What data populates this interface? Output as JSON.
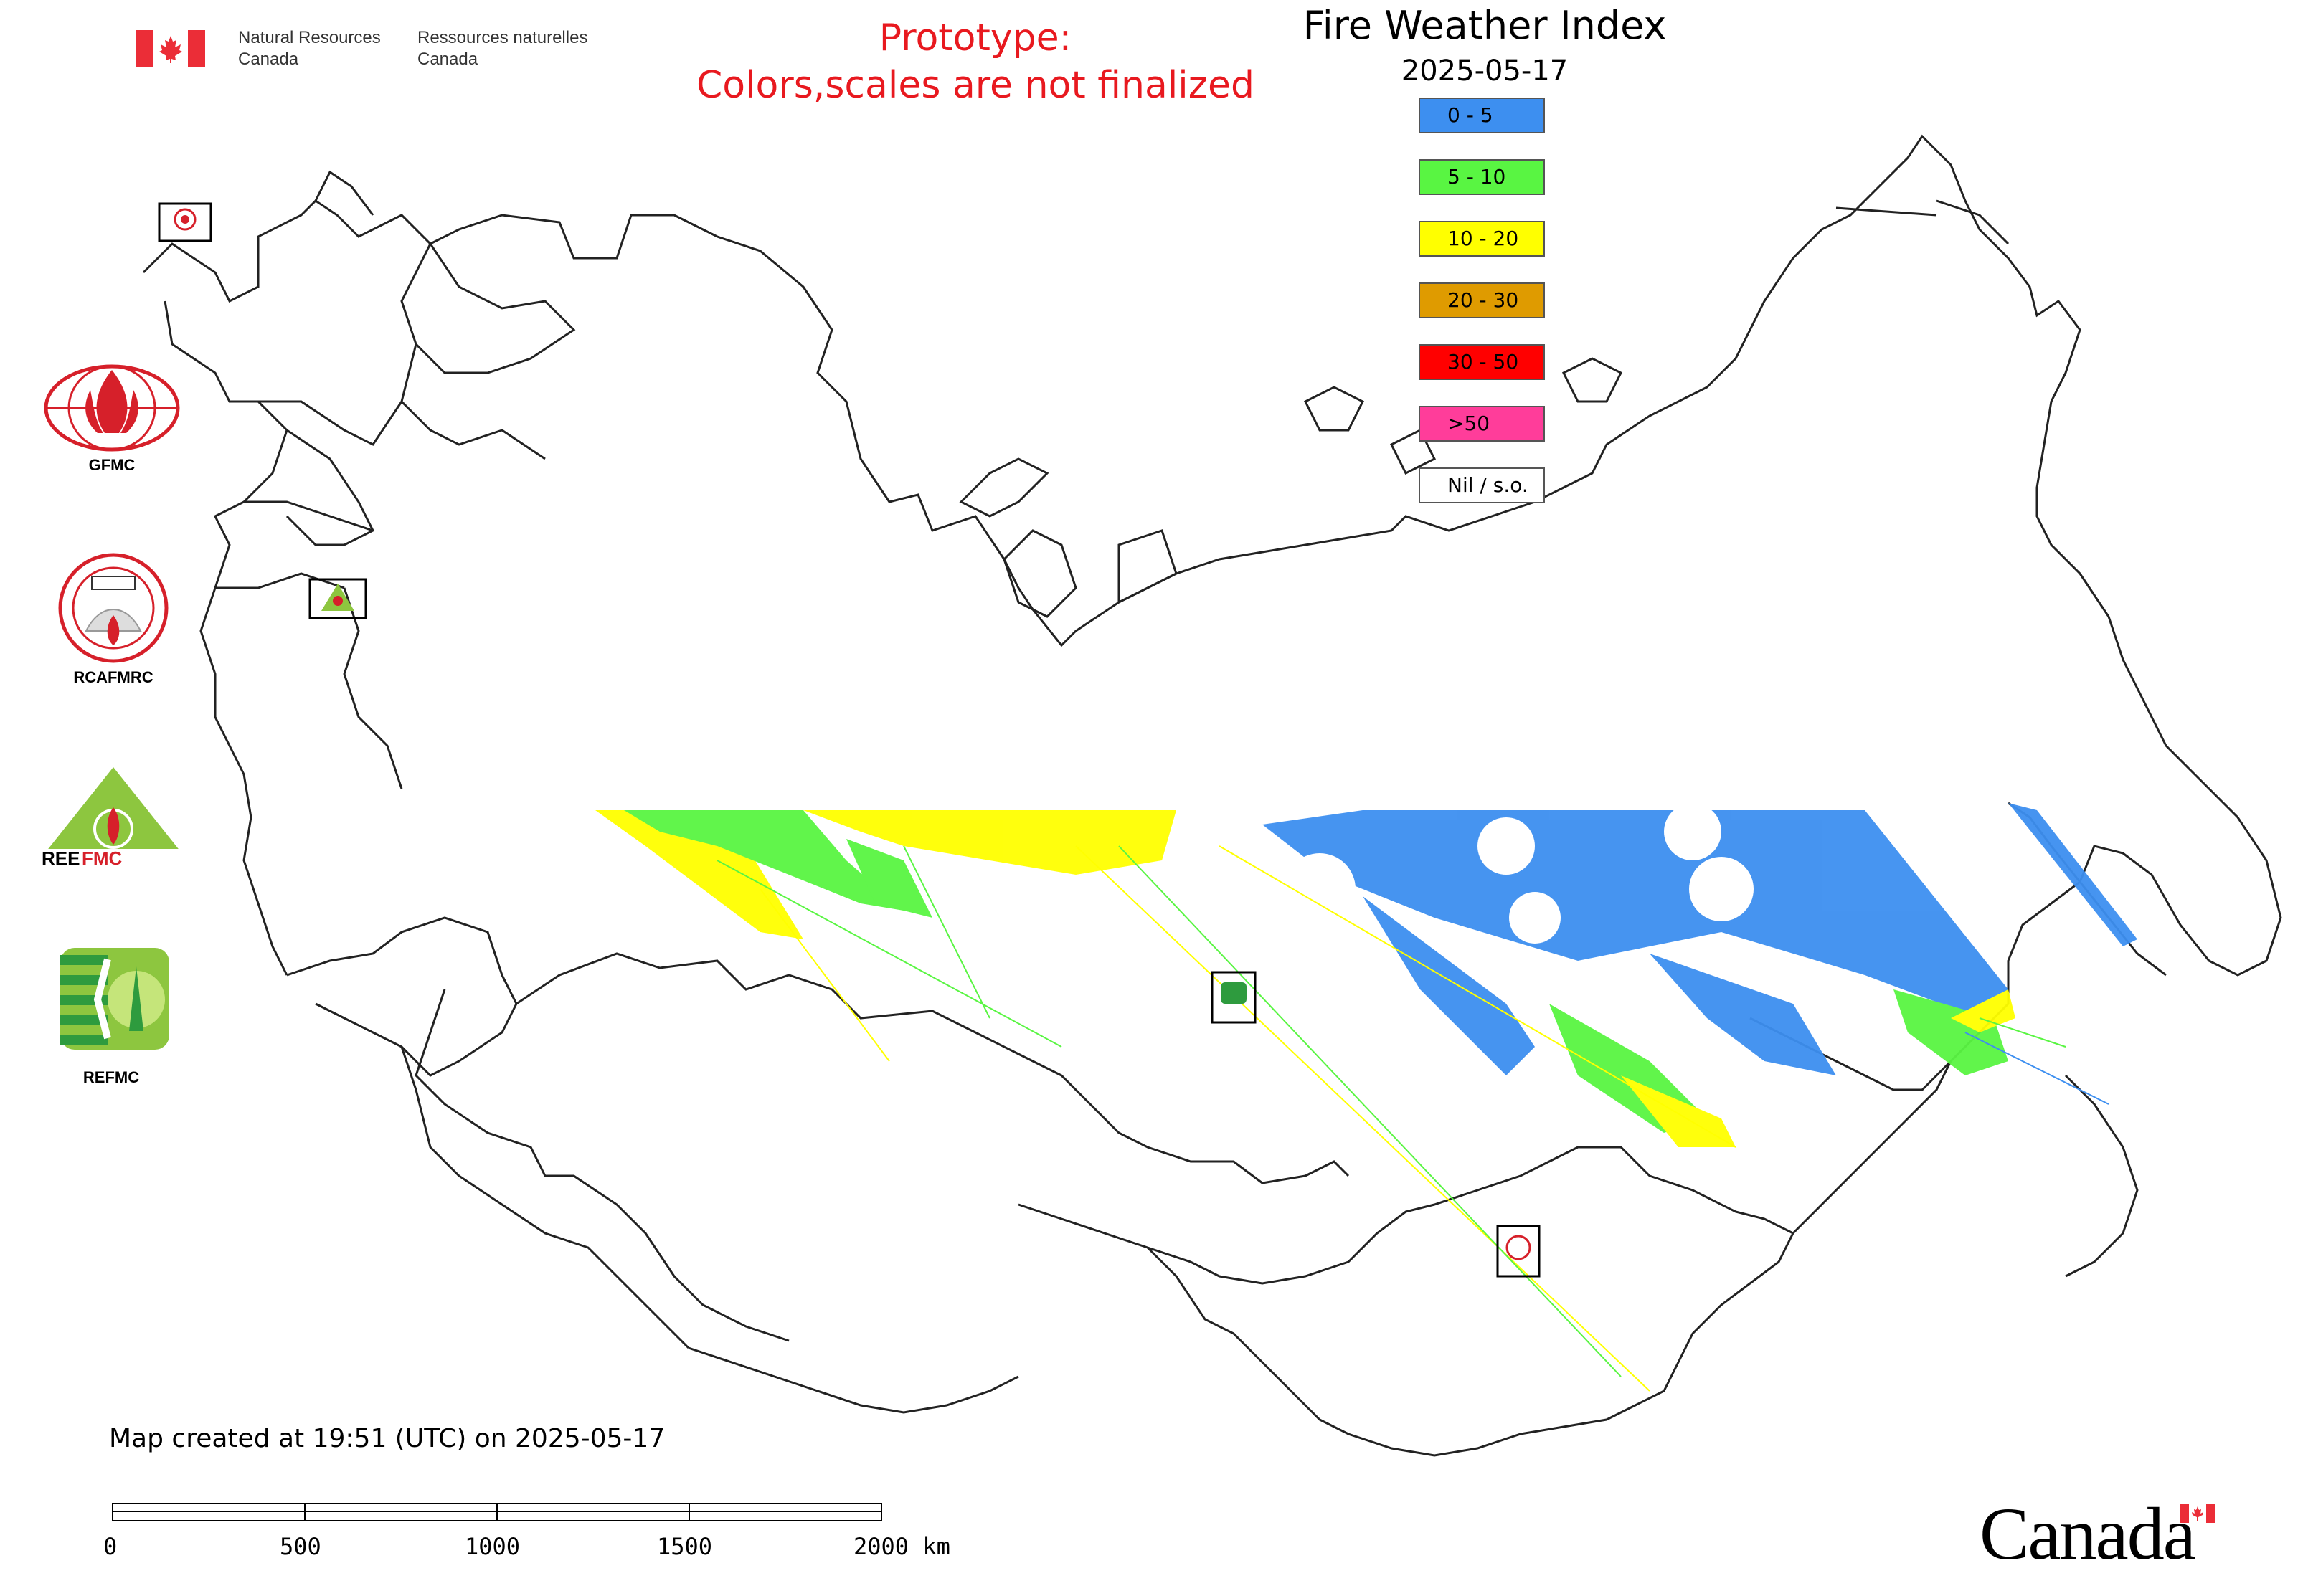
{
  "header": {
    "dept_en_line1": "Natural Resources",
    "dept_en_line2": "Canada",
    "dept_fr_line1": "Ressources naturelles",
    "dept_fr_line2": "Canada"
  },
  "prototype_notice": {
    "line1": "Prototype:",
    "line2": "Colors,scales are not finalized",
    "color": "#e8191f"
  },
  "map": {
    "title": "Fire Weather Index",
    "date": "2025-05-17",
    "legend": [
      {
        "label": "0 - 5",
        "color": "#3d8ff0"
      },
      {
        "label": "5 - 10",
        "color": "#59f542"
      },
      {
        "label": "10 - 20",
        "color": "#ffff00"
      },
      {
        "label": "20 - 30",
        "color": "#df9b00"
      },
      {
        "label": "30 - 50",
        "color": "#ff0000"
      },
      {
        "label": ">50",
        "color": "#ff3d9a"
      },
      {
        "label": "Nil / s.o.",
        "color": "#ffffff"
      }
    ]
  },
  "logos": {
    "gfmc": "GFMC",
    "rcafmrc": "RCAFMRC",
    "reefmc": "REEFMC",
    "refmc": "REFMC"
  },
  "footer": {
    "created": "Map created at 19:51 (UTC) on 2025-05-17",
    "scale_labels": [
      "0",
      "500",
      "1000",
      "1500",
      "2000 km"
    ],
    "wordmark": "Canada"
  }
}
